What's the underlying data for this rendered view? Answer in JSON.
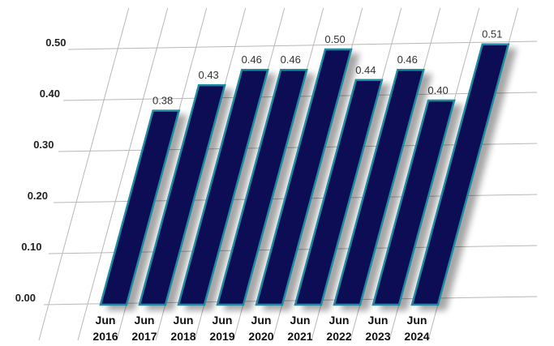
{
  "chart_data": {
    "type": "bar",
    "title": "",
    "xlabel": "",
    "ylabel": "",
    "categories": [
      [
        "Jun",
        "2016"
      ],
      [
        "Jun",
        "2017"
      ],
      [
        "Jun",
        "2018"
      ],
      [
        "Jun",
        "2019"
      ],
      [
        "Jun",
        "2020"
      ],
      [
        "Jun",
        "2021"
      ],
      [
        "Jun",
        "2022"
      ],
      [
        "Jun",
        "2023"
      ],
      [
        "Jun",
        "2024"
      ]
    ],
    "values": [
      0.38,
      0.43,
      0.46,
      0.46,
      0.5,
      0.44,
      0.46,
      0.4,
      0.51
    ],
    "data_labels": [
      "0.38",
      "0.43",
      "0.46",
      "0.46",
      "0.50",
      "0.44",
      "0.46",
      "0.40",
      "0.51"
    ],
    "y_ticks": [
      "0.00",
      "0.10",
      "0.20",
      "0.30",
      "0.40",
      "0.50"
    ],
    "ylim": [
      0,
      0.5
    ],
    "grid": true,
    "legend": "none",
    "colors": {
      "bar_fill": "#0a0d56",
      "bar_stroke": "#1a8aa0",
      "grid": "#b8b8b8"
    }
  }
}
